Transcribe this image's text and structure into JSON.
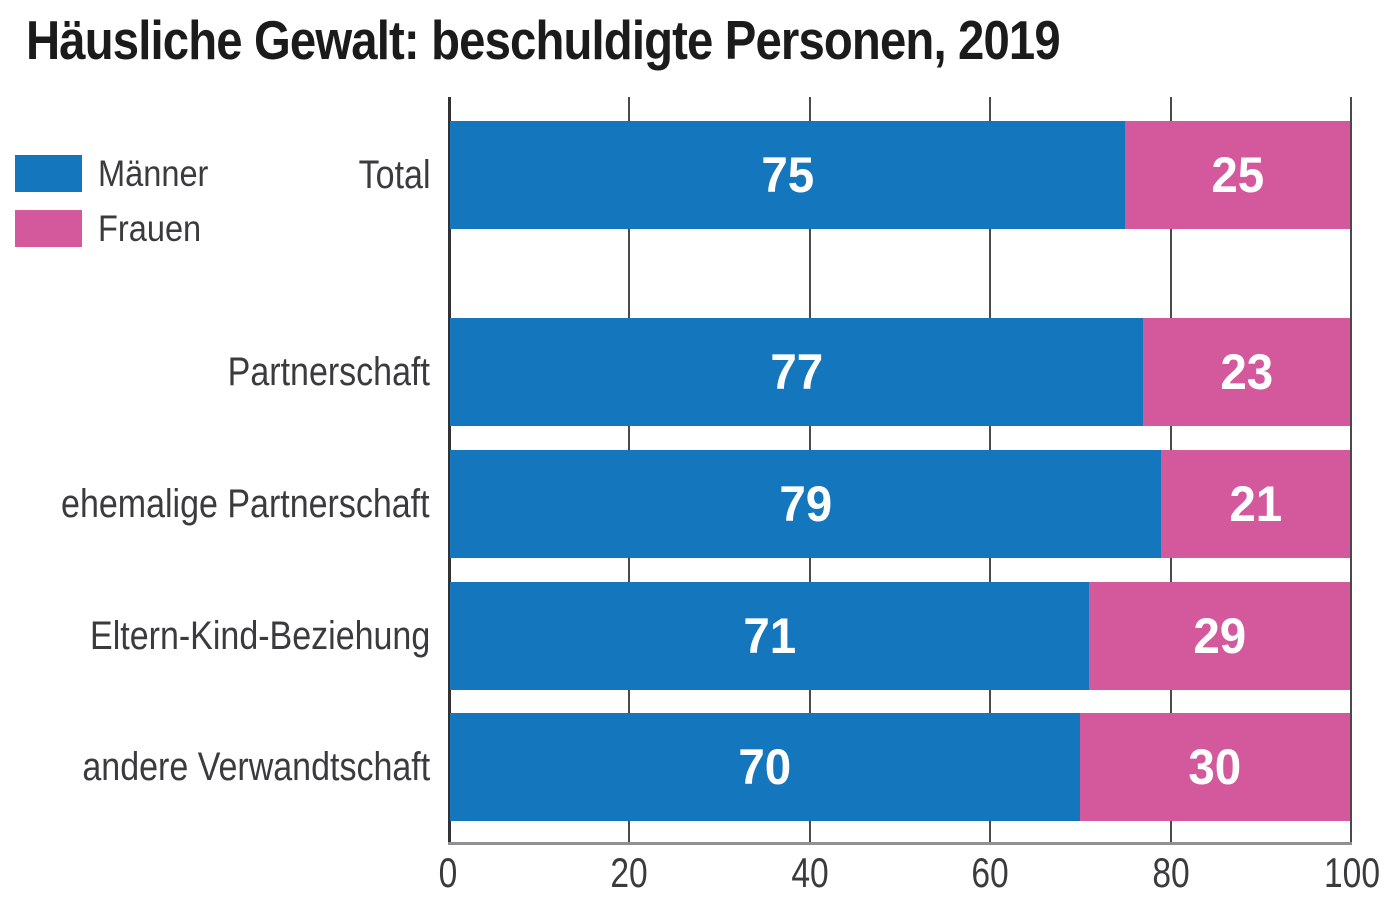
{
  "chart_data": {
    "type": "bar",
    "stacked": true,
    "orientation": "horizontal",
    "title": "Häusliche Gewalt: beschuldigte Personen, 2019",
    "categories": [
      "Total",
      "Partnerschaft",
      "ehemalige Partnerschaft",
      "Eltern-Kind-Beziehung",
      "andere Verwandtschaft"
    ],
    "series": [
      {
        "name": "Männer",
        "color": "#1476bc",
        "values": [
          75,
          77,
          79,
          71,
          70
        ]
      },
      {
        "name": "Frauen",
        "color": "#d3589c",
        "values": [
          25,
          23,
          21,
          29,
          30
        ]
      }
    ],
    "xlim": [
      0,
      100
    ],
    "x_ticks": [
      0,
      20,
      40,
      60,
      80,
      100
    ],
    "grid": true,
    "legend_position": "upper-left",
    "value_labels": "inside-center"
  },
  "colors": {
    "maenner_blue": "#1476bc",
    "frauen_pink": "#d3589c",
    "grid_line": "#4a4a4c",
    "axis_line": "#919193",
    "label_text": "#3b3b3d",
    "title_text": "#1b1b1b",
    "value_label_text": "#ffffff"
  }
}
